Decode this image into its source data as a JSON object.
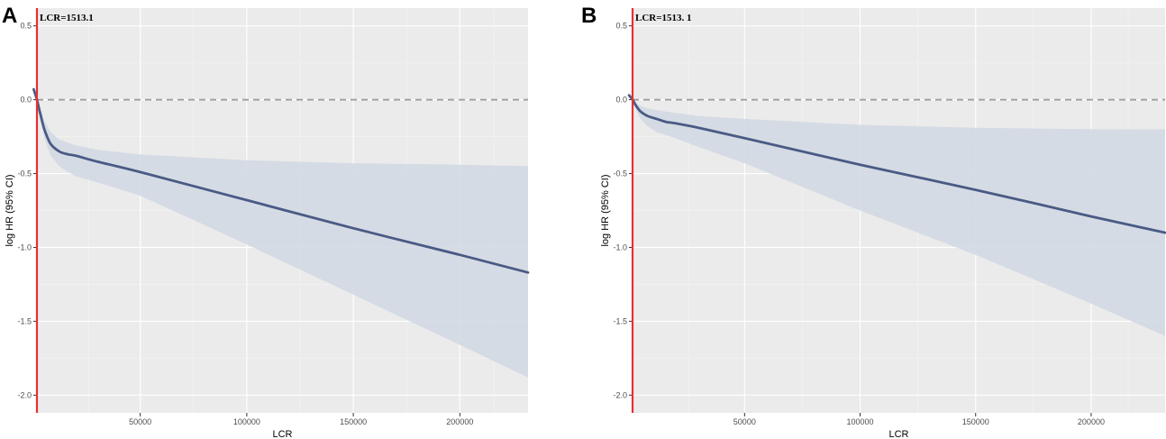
{
  "chart_data": [
    {
      "panel": "A",
      "type": "line",
      "xlabel": "LCR",
      "ylabel": "log HR (95% CI)",
      "xlim": [
        1513.1,
        232000
      ],
      "ylim": [
        -2.12,
        0.62
      ],
      "x_ticks": [
        50000,
        100000,
        150000,
        200000
      ],
      "x_tick_labels": [
        "50000",
        "100000",
        "150000",
        "200000"
      ],
      "y_ticks": [
        0.5,
        0.0,
        -0.5,
        -1.0,
        -1.5,
        -2.0
      ],
      "y_tick_labels": [
        "0.5",
        "0.0",
        "-0.5",
        "-1.0",
        "-1.5",
        "-2.0"
      ],
      "grid": true,
      "reference_line": {
        "type": "horizontal-dashed",
        "y": 0
      },
      "cutoff_line": {
        "type": "vertical",
        "x": 1513.1,
        "color": "#e8302f",
        "label": "LCR=1513.1"
      },
      "series": [
        {
          "name": "log HR",
          "color": "#4a5a85",
          "x": [
            0,
            1513.1,
            3000,
            5000,
            8000,
            12000,
            16000,
            20000,
            30000,
            50000,
            100000,
            150000,
            200000,
            232000
          ],
          "y": [
            0.07,
            0.0,
            -0.09,
            -0.2,
            -0.3,
            -0.35,
            -0.37,
            -0.38,
            -0.42,
            -0.49,
            -0.68,
            -0.87,
            -1.05,
            -1.17
          ]
        }
      ],
      "ci_band": {
        "color": "#d3d9e3",
        "x": [
          1513.1,
          3000,
          5000,
          8000,
          12000,
          16000,
          20000,
          30000,
          50000,
          100000,
          150000,
          200000,
          232000
        ],
        "upper": [
          0.0,
          -0.06,
          -0.14,
          -0.22,
          -0.27,
          -0.29,
          -0.31,
          -0.34,
          -0.37,
          -0.41,
          -0.43,
          -0.44,
          -0.45
        ],
        "lower": [
          0.0,
          -0.12,
          -0.26,
          -0.38,
          -0.45,
          -0.49,
          -0.52,
          -0.56,
          -0.65,
          -0.98,
          -1.32,
          -1.66,
          -1.88
        ]
      }
    },
    {
      "panel": "B",
      "type": "line",
      "xlabel": "LCR",
      "ylabel": "log HR (95% CI)",
      "xlim": [
        1513.1,
        232000
      ],
      "ylim": [
        -2.12,
        0.62
      ],
      "x_ticks": [
        50000,
        100000,
        150000,
        200000
      ],
      "x_tick_labels": [
        "50000",
        "100000",
        "150000",
        "200000"
      ],
      "y_ticks": [
        0.5,
        0.0,
        -0.5,
        -1.0,
        -1.5,
        -2.0
      ],
      "y_tick_labels": [
        "0.5",
        "0.0",
        "-0.5",
        "-1.0",
        "-1.5",
        "-2.0"
      ],
      "grid": true,
      "reference_line": {
        "type": "horizontal-dashed",
        "y": 0
      },
      "cutoff_line": {
        "type": "vertical",
        "x": 1513.1,
        "color": "#e8302f",
        "label": "LCR=1513. 1"
      },
      "series": [
        {
          "name": "log HR",
          "color": "#4a5a85",
          "x": [
            0,
            1513.1,
            3000,
            5000,
            8000,
            12000,
            16000,
            20000,
            30000,
            50000,
            100000,
            150000,
            200000,
            232000
          ],
          "y": [
            0.03,
            0.0,
            -0.04,
            -0.08,
            -0.11,
            -0.13,
            -0.15,
            -0.16,
            -0.19,
            -0.26,
            -0.44,
            -0.61,
            -0.79,
            -0.9
          ]
        }
      ],
      "ci_band": {
        "color": "#d3d9e3",
        "x": [
          1513.1,
          3000,
          5000,
          8000,
          12000,
          16000,
          20000,
          30000,
          50000,
          100000,
          150000,
          200000,
          232000
        ],
        "upper": [
          0.0,
          -0.02,
          -0.04,
          -0.06,
          -0.07,
          -0.08,
          -0.09,
          -0.11,
          -0.13,
          -0.17,
          -0.19,
          -0.2,
          -0.2
        ],
        "lower": [
          0.0,
          -0.07,
          -0.13,
          -0.18,
          -0.22,
          -0.24,
          -0.26,
          -0.32,
          -0.43,
          -0.75,
          -1.05,
          -1.38,
          -1.6
        ]
      }
    }
  ]
}
